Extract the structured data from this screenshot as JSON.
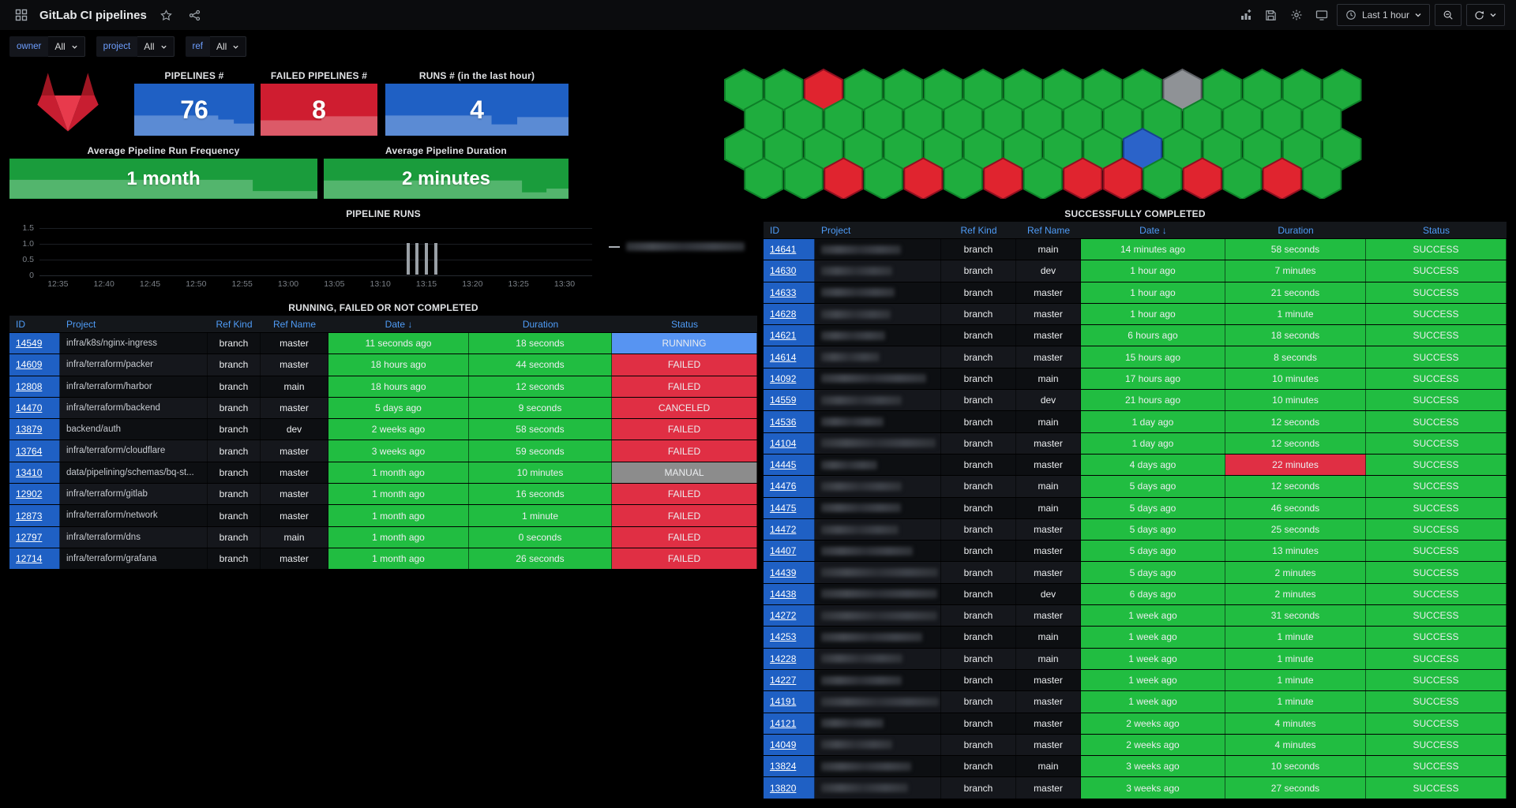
{
  "app": {
    "title": "GitLab CI pipelines",
    "time_range": "Last 1 hour"
  },
  "filters": [
    {
      "label": "owner",
      "value": "All"
    },
    {
      "label": "project",
      "value": "All"
    },
    {
      "label": "ref",
      "value": "All"
    }
  ],
  "stats": {
    "pipelines": {
      "title": "PIPELINES #",
      "value": "76"
    },
    "failed": {
      "title": "FAILED PIPELINES #",
      "value": "8"
    },
    "runs": {
      "title": "RUNS # (in the last hour)",
      "value": "4"
    },
    "frequency": {
      "title": "Average Pipeline Run Frequency",
      "value": "1 month"
    },
    "duration": {
      "title": "Average Pipeline Duration",
      "value": "2 minutes"
    }
  },
  "colors": {
    "green": "#21bd41",
    "red": "#e02f44",
    "blue_id": "#1f60c4",
    "header_blue": "#4f9cf7",
    "stat_blue": "#1f60c4",
    "stat_red": "#cf1d30",
    "stat_green": "#1a9c3c",
    "logo_center": "#e83a4c",
    "logo_wing": "#c81e31",
    "logo_horn": "#9e1622"
  },
  "status_colors": {
    "RUNNING": "#5794f2",
    "FAILED": "#e02f44",
    "CANCELED": "#e02f44",
    "MANUAL": "#8c8c8c",
    "SUCCESS": "#21bd41"
  },
  "hex_panel": {
    "colors": {
      "g": "#1fad3e",
      "r": "#e0242f",
      "b": "#2b63c9",
      "x": "#8f9296"
    },
    "strokes": {
      "g": "#0e7f28",
      "r": "#8f1020",
      "b": "#17418f",
      "x": "#5d6065"
    },
    "rows": [
      [
        "g",
        "g",
        "r",
        "g",
        "g",
        "g",
        "g",
        "g",
        "g",
        "g",
        "g",
        "x",
        "g",
        "g",
        "g",
        "g"
      ],
      [
        "g",
        "g",
        "g",
        "g",
        "g",
        "g",
        "g",
        "g",
        "g",
        "g",
        "g",
        "g",
        "g",
        "g",
        "g"
      ],
      [
        "g",
        "g",
        "g",
        "g",
        "g",
        "g",
        "g",
        "g",
        "g",
        "g",
        "b",
        "g",
        "g",
        "g",
        "g",
        "g"
      ],
      [
        "g",
        "g",
        "r",
        "g",
        "r",
        "g",
        "r",
        "g",
        "r",
        "r",
        "g",
        "r",
        "g",
        "r",
        "g"
      ]
    ]
  },
  "chart_data": {
    "type": "bar",
    "title": "PIPELINE RUNS",
    "x_start": "12:33",
    "x_end": "13:33",
    "x_ticks": [
      "12:35",
      "12:40",
      "12:45",
      "12:50",
      "12:55",
      "13:00",
      "13:05",
      "13:10",
      "13:15",
      "13:20",
      "13:25",
      "13:30"
    ],
    "y_ticks": [
      "1.5",
      "1.0",
      "0.5",
      "0"
    ],
    "ylim": [
      0,
      1.5
    ],
    "bars": [
      {
        "x": "13:13",
        "y": 1
      },
      {
        "x": "13:14",
        "y": 1
      },
      {
        "x": "13:15",
        "y": 1
      },
      {
        "x": "13:16",
        "y": 1
      }
    ],
    "bar_color": "#9aa0a6",
    "legend": [
      {
        "redacted": true
      }
    ]
  },
  "tables": {
    "running": {
      "title": "RUNNING, FAILED OR NOT COMPLETED",
      "columns": [
        {
          "key": "id",
          "label": "ID"
        },
        {
          "key": "project",
          "label": "Project"
        },
        {
          "key": "ref_kind",
          "label": "Ref Kind"
        },
        {
          "key": "ref_name",
          "label": "Ref Name"
        },
        {
          "key": "date",
          "label": "Date ↓"
        },
        {
          "key": "duration",
          "label": "Duration"
        },
        {
          "key": "status",
          "label": "Status"
        }
      ],
      "rows": [
        {
          "id": "14549",
          "project": "infra/k8s/nginx-ingress",
          "ref_kind": "branch",
          "ref_name": "master",
          "date": "11 seconds ago",
          "duration": "18 seconds",
          "status": "RUNNING"
        },
        {
          "id": "14609",
          "project": "infra/terraform/packer",
          "ref_kind": "branch",
          "ref_name": "master",
          "date": "18 hours ago",
          "duration": "44 seconds",
          "status": "FAILED"
        },
        {
          "id": "12808",
          "project": "infra/terraform/harbor",
          "ref_kind": "branch",
          "ref_name": "main",
          "date": "18 hours ago",
          "duration": "12 seconds",
          "status": "FAILED"
        },
        {
          "id": "14470",
          "project": "infra/terraform/backend",
          "ref_kind": "branch",
          "ref_name": "master",
          "date": "5 days ago",
          "duration": "9 seconds",
          "status": "CANCELED"
        },
        {
          "id": "13879",
          "project": "backend/auth",
          "ref_kind": "branch",
          "ref_name": "dev",
          "date": "2 weeks ago",
          "duration": "58 seconds",
          "status": "FAILED"
        },
        {
          "id": "13764",
          "project": "infra/terraform/cloudflare",
          "ref_kind": "branch",
          "ref_name": "master",
          "date": "3 weeks ago",
          "duration": "59 seconds",
          "status": "FAILED"
        },
        {
          "id": "13410",
          "project": "data/pipelining/schemas/bq-st...",
          "ref_kind": "branch",
          "ref_name": "master",
          "date": "1 month ago",
          "duration": "10 minutes",
          "status": "MANUAL"
        },
        {
          "id": "12902",
          "project": "infra/terraform/gitlab",
          "ref_kind": "branch",
          "ref_name": "master",
          "date": "1 month ago",
          "duration": "16 seconds",
          "status": "FAILED"
        },
        {
          "id": "12873",
          "project": "infra/terraform/network",
          "ref_kind": "branch",
          "ref_name": "master",
          "date": "1 month ago",
          "duration": "1 minute",
          "status": "FAILED"
        },
        {
          "id": "12797",
          "project": "infra/terraform/dns",
          "ref_kind": "branch",
          "ref_name": "main",
          "date": "1 month ago",
          "duration": "0 seconds",
          "status": "FAILED"
        },
        {
          "id": "12714",
          "project": "infra/terraform/grafana",
          "ref_kind": "branch",
          "ref_name": "master",
          "date": "1 month ago",
          "duration": "26 seconds",
          "status": "FAILED"
        }
      ]
    },
    "success": {
      "title": "SUCCESSFULLY COMPLETED",
      "columns": [
        {
          "key": "id",
          "label": "ID"
        },
        {
          "key": "project",
          "label": "Project"
        },
        {
          "key": "ref_kind",
          "label": "Ref Kind"
        },
        {
          "key": "ref_name",
          "label": "Ref Name"
        },
        {
          "key": "date",
          "label": "Date ↓"
        },
        {
          "key": "duration",
          "label": "Duration"
        },
        {
          "key": "status",
          "label": "Status"
        }
      ],
      "rows": [
        {
          "id": "14641",
          "redacted": true,
          "ref_kind": "branch",
          "ref_name": "main",
          "date": "14 minutes ago",
          "duration": "58 seconds",
          "status": "SUCCESS"
        },
        {
          "id": "14630",
          "redacted": true,
          "ref_kind": "branch",
          "ref_name": "dev",
          "date": "1 hour ago",
          "duration": "7 minutes",
          "status": "SUCCESS"
        },
        {
          "id": "14633",
          "redacted": true,
          "ref_kind": "branch",
          "ref_name": "master",
          "date": "1 hour ago",
          "duration": "21 seconds",
          "status": "SUCCESS"
        },
        {
          "id": "14628",
          "redacted": true,
          "ref_kind": "branch",
          "ref_name": "master",
          "date": "1 hour ago",
          "duration": "1 minute",
          "status": "SUCCESS"
        },
        {
          "id": "14621",
          "redacted": true,
          "ref_kind": "branch",
          "ref_name": "master",
          "date": "6 hours ago",
          "duration": "18 seconds",
          "status": "SUCCESS"
        },
        {
          "id": "14614",
          "redacted": true,
          "ref_kind": "branch",
          "ref_name": "master",
          "date": "15 hours ago",
          "duration": "8 seconds",
          "status": "SUCCESS"
        },
        {
          "id": "14092",
          "redacted": true,
          "ref_kind": "branch",
          "ref_name": "main",
          "date": "17 hours ago",
          "duration": "10 minutes",
          "status": "SUCCESS"
        },
        {
          "id": "14559",
          "redacted": true,
          "ref_kind": "branch",
          "ref_name": "dev",
          "date": "21 hours ago",
          "duration": "10 minutes",
          "status": "SUCCESS"
        },
        {
          "id": "14536",
          "redacted": true,
          "ref_kind": "branch",
          "ref_name": "main",
          "date": "1 day ago",
          "duration": "12 seconds",
          "status": "SUCCESS"
        },
        {
          "id": "14104",
          "redacted": true,
          "ref_kind": "branch",
          "ref_name": "master",
          "date": "1 day ago",
          "duration": "12 seconds",
          "status": "SUCCESS"
        },
        {
          "id": "14445",
          "redacted": true,
          "ref_kind": "branch",
          "ref_name": "master",
          "date": "4 days ago",
          "duration": "22 minutes",
          "duration_color": "red",
          "status": "SUCCESS"
        },
        {
          "id": "14476",
          "redacted": true,
          "ref_kind": "branch",
          "ref_name": "main",
          "date": "5 days ago",
          "duration": "12 seconds",
          "status": "SUCCESS"
        },
        {
          "id": "14475",
          "redacted": true,
          "ref_kind": "branch",
          "ref_name": "main",
          "date": "5 days ago",
          "duration": "46 seconds",
          "status": "SUCCESS"
        },
        {
          "id": "14472",
          "redacted": true,
          "ref_kind": "branch",
          "ref_name": "master",
          "date": "5 days ago",
          "duration": "25 seconds",
          "status": "SUCCESS"
        },
        {
          "id": "14407",
          "redacted": true,
          "ref_kind": "branch",
          "ref_name": "master",
          "date": "5 days ago",
          "duration": "13 minutes",
          "status": "SUCCESS"
        },
        {
          "id": "14439",
          "redacted": true,
          "ref_kind": "branch",
          "ref_name": "master",
          "date": "5 days ago",
          "duration": "2 minutes",
          "status": "SUCCESS"
        },
        {
          "id": "14438",
          "redacted": true,
          "ref_kind": "branch",
          "ref_name": "dev",
          "date": "6 days ago",
          "duration": "2 minutes",
          "status": "SUCCESS"
        },
        {
          "id": "14272",
          "redacted": true,
          "ref_kind": "branch",
          "ref_name": "master",
          "date": "1 week ago",
          "duration": "31 seconds",
          "status": "SUCCESS"
        },
        {
          "id": "14253",
          "redacted": true,
          "ref_kind": "branch",
          "ref_name": "main",
          "date": "1 week ago",
          "duration": "1 minute",
          "status": "SUCCESS"
        },
        {
          "id": "14228",
          "redacted": true,
          "ref_kind": "branch",
          "ref_name": "main",
          "date": "1 week ago",
          "duration": "1 minute",
          "status": "SUCCESS"
        },
        {
          "id": "14227",
          "redacted": true,
          "ref_kind": "branch",
          "ref_name": "master",
          "date": "1 week ago",
          "duration": "1 minute",
          "status": "SUCCESS"
        },
        {
          "id": "14191",
          "redacted": true,
          "ref_kind": "branch",
          "ref_name": "master",
          "date": "1 week ago",
          "duration": "1 minute",
          "status": "SUCCESS"
        },
        {
          "id": "14121",
          "redacted": true,
          "ref_kind": "branch",
          "ref_name": "master",
          "date": "2 weeks ago",
          "duration": "4 minutes",
          "status": "SUCCESS"
        },
        {
          "id": "14049",
          "redacted": true,
          "ref_kind": "branch",
          "ref_name": "master",
          "date": "2 weeks ago",
          "duration": "4 minutes",
          "status": "SUCCESS"
        },
        {
          "id": "13824",
          "redacted": true,
          "ref_kind": "branch",
          "ref_name": "main",
          "date": "3 weeks ago",
          "duration": "10 seconds",
          "status": "SUCCESS"
        },
        {
          "id": "13820",
          "redacted": true,
          "ref_kind": "branch",
          "ref_name": "master",
          "date": "3 weeks ago",
          "duration": "27 seconds",
          "status": "SUCCESS"
        }
      ]
    }
  }
}
